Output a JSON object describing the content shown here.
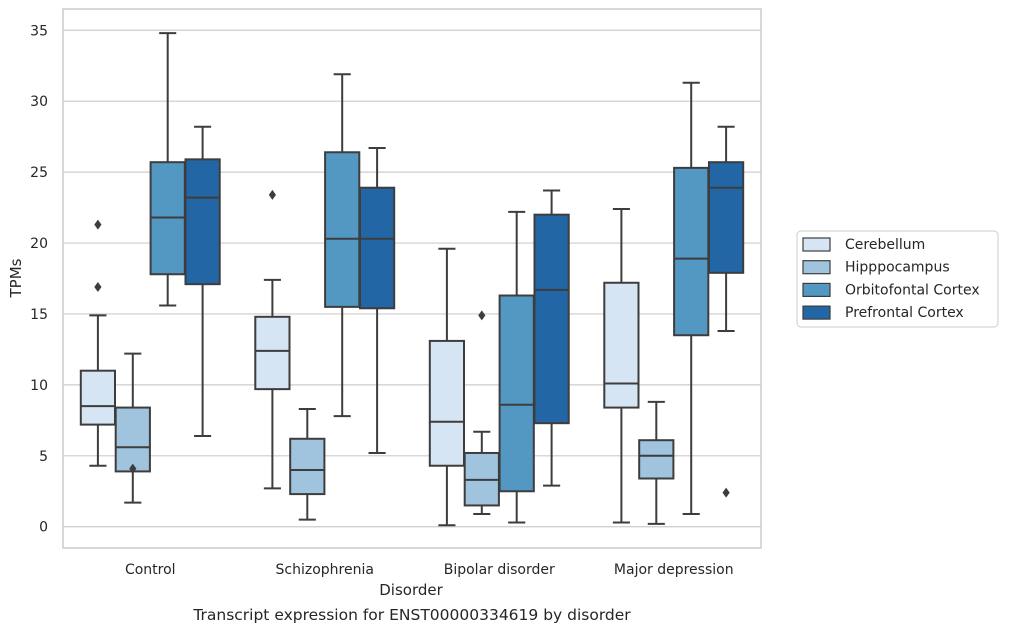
{
  "caption": "Transcript expression for ENST00000334619 by disorder",
  "chart_data": {
    "type": "boxplot",
    "xlabel": "Disorder",
    "ylabel": "TPMs",
    "ylim": [
      -1.5,
      36.5
    ],
    "yticks": [
      0,
      5,
      10,
      15,
      20,
      25,
      30,
      35
    ],
    "grid": "horizontal",
    "legend_position": "right",
    "categories": [
      "Control",
      "Schizophrenia",
      "Bipolar disorder",
      "Major depression"
    ],
    "series": [
      {
        "name": "Cerebellum",
        "color": "#d6e5f4",
        "boxes": [
          {
            "whislo": 4.3,
            "q1": 7.2,
            "med": 8.5,
            "q3": 11.0,
            "whishi": 14.9,
            "fliers": [
              21.3,
              16.9
            ]
          },
          {
            "whislo": 2.7,
            "q1": 9.7,
            "med": 12.4,
            "q3": 14.8,
            "whishi": 17.4,
            "fliers": [
              23.4
            ]
          },
          {
            "whislo": 0.1,
            "q1": 4.3,
            "med": 7.4,
            "q3": 13.1,
            "whishi": 19.6,
            "fliers": []
          },
          {
            "whislo": 0.3,
            "q1": 8.4,
            "med": 10.1,
            "q3": 17.2,
            "whishi": 22.4,
            "fliers": []
          }
        ]
      },
      {
        "name": "Hipppocampus",
        "color": "#a0c4de",
        "boxes": [
          {
            "whislo": 1.7,
            "q1": 3.9,
            "med": 5.6,
            "q3": 8.4,
            "whishi": 12.2,
            "fliers": [
              4.1
            ]
          },
          {
            "whislo": 0.5,
            "q1": 2.3,
            "med": 4.0,
            "q3": 6.2,
            "whishi": 8.3,
            "fliers": []
          },
          {
            "whislo": 0.9,
            "q1": 1.5,
            "med": 3.3,
            "q3": 5.2,
            "whishi": 6.7,
            "fliers": [
              14.9
            ]
          },
          {
            "whislo": 0.2,
            "q1": 3.4,
            "med": 5.0,
            "q3": 6.1,
            "whishi": 8.8,
            "fliers": []
          }
        ]
      },
      {
        "name": "Orbitofontal Cortex",
        "color": "#5397c3",
        "boxes": [
          {
            "whislo": 15.6,
            "q1": 17.8,
            "med": 21.8,
            "q3": 25.7,
            "whishi": 34.8,
            "fliers": []
          },
          {
            "whislo": 7.8,
            "q1": 15.5,
            "med": 20.3,
            "q3": 26.4,
            "whishi": 31.9,
            "fliers": []
          },
          {
            "whislo": 0.3,
            "q1": 2.5,
            "med": 8.6,
            "q3": 16.3,
            "whishi": 22.2,
            "fliers": []
          },
          {
            "whislo": 0.9,
            "q1": 13.5,
            "med": 18.9,
            "q3": 25.3,
            "whishi": 31.3,
            "fliers": []
          }
        ]
      },
      {
        "name": "Prefrontal Cortex",
        "color": "#2266a6",
        "boxes": [
          {
            "whislo": 6.4,
            "q1": 17.1,
            "med": 23.2,
            "q3": 25.9,
            "whishi": 28.2,
            "fliers": []
          },
          {
            "whislo": 5.2,
            "q1": 15.4,
            "med": 20.3,
            "q3": 23.9,
            "whishi": 26.7,
            "fliers": []
          },
          {
            "whislo": 2.9,
            "q1": 7.3,
            "med": 16.7,
            "q3": 22.0,
            "whishi": 23.7,
            "fliers": []
          },
          {
            "whislo": 13.8,
            "q1": 17.9,
            "med": 23.9,
            "q3": 25.7,
            "whishi": 28.2,
            "fliers": [
              2.4
            ]
          }
        ]
      }
    ]
  }
}
